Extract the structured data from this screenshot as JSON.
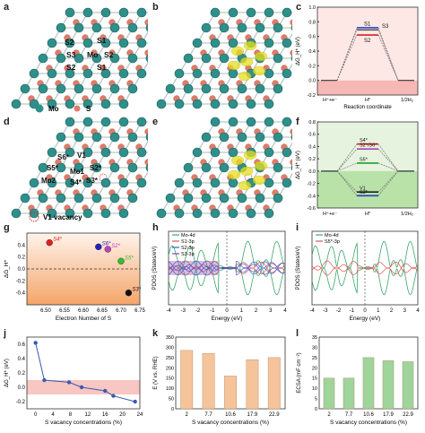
{
  "panel_labels": [
    "a",
    "b",
    "c",
    "d",
    "e",
    "f",
    "g",
    "h",
    "i",
    "j",
    "k",
    "l"
  ],
  "structure": {
    "a_sites": [
      "S1",
      "S2",
      "S3",
      "Mo",
      "S2",
      "S2",
      "S1"
    ],
    "a_legend": [
      "Mo",
      "S"
    ],
    "d_sites": [
      "V1",
      "S6*",
      "S5*",
      "Mo1",
      "S2*",
      "Mo2",
      "S4*",
      "S3*"
    ],
    "d_legend": "V1 vacancy",
    "colors": {
      "mo": "#2f8f8a",
      "s": "#e07b6a",
      "charge": "#e8e020"
    }
  },
  "chart_data": [
    {
      "panel": "c",
      "type": "line",
      "ylabel": "ΔG_H* (eV)",
      "xlabel": "Reaction coordinate",
      "ylim": [
        -0.2,
        1.0
      ],
      "yticks": [
        "-0.2",
        "0.0",
        "0.2",
        "0.4",
        "0.6",
        "0.8",
        "1.0"
      ],
      "categories": [
        "H⁺+e⁻",
        "H*",
        "1/2H₂"
      ],
      "series": [
        {
          "name": "S1",
          "value": 0.72,
          "color": "#1a3fc9"
        },
        {
          "name": "S3",
          "value": 0.69,
          "color": "#555555"
        },
        {
          "name": "S2",
          "value": 0.62,
          "color": "#d42020"
        }
      ]
    },
    {
      "panel": "f",
      "type": "line",
      "ylabel": "ΔG_H* (eV)",
      "ylim": [
        -0.6,
        0.8
      ],
      "yticks": [
        "-0.6",
        "-0.4",
        "-0.2",
        "0.0",
        "0.2",
        "0.4",
        "0.6",
        "0.8"
      ],
      "categories": [
        "H⁺+e⁻",
        "H*",
        "1/2H₂"
      ],
      "series": [
        {
          "name": "S4*",
          "value": 0.44,
          "color": "#e02020"
        },
        {
          "name": "S2*/S6*",
          "value": 0.36,
          "color": "#b040b0"
        },
        {
          "name": "S5*",
          "value": 0.13,
          "color": "#20a020"
        },
        {
          "name": "V1",
          "value": -0.34,
          "color": "#222222"
        },
        {
          "name": "S3*",
          "value": -0.4,
          "color": "#1a3fc9"
        }
      ]
    },
    {
      "panel": "g",
      "type": "scatter",
      "ylabel": "ΔG_H*",
      "xlabel": "Electron Number of S",
      "xlim": [
        6.45,
        6.75
      ],
      "ylim": [
        -0.6,
        0.6
      ],
      "xticks": [
        "6.50",
        "6.55",
        "6.60",
        "6.65",
        "6.70",
        "6.75"
      ],
      "yticks": [
        "-0.4",
        "-0.2",
        "0.0",
        "0.2",
        "0.4"
      ],
      "points": [
        {
          "label": "S4*",
          "x": 6.51,
          "y": 0.44,
          "color": "#e02020"
        },
        {
          "label": "S6*",
          "x": 6.64,
          "y": 0.37,
          "color": "#2020c0"
        },
        {
          "label": "S2*",
          "x": 6.665,
          "y": 0.33,
          "color": "#c040c0"
        },
        {
          "label": "S5*",
          "x": 6.7,
          "y": 0.13,
          "color": "#30c030"
        },
        {
          "label": "S3*",
          "x": 6.72,
          "y": -0.4,
          "color": "#111111"
        }
      ]
    },
    {
      "panel": "h",
      "type": "line",
      "ylabel": "PDOS (States/eV)",
      "xlabel": "Energy (eV)",
      "xlim": [
        -4,
        4
      ],
      "xticks": [
        "-4",
        "-3",
        "-2",
        "-1",
        "0",
        "1",
        "2",
        "3",
        "4"
      ],
      "series": [
        {
          "name": "Mo-4d",
          "color": "#3aa86a"
        },
        {
          "name": "S1-3p",
          "color": "#e05050"
        },
        {
          "name": "S2-3p",
          "color": "#3060d0"
        },
        {
          "name": "S3-3p",
          "color": "#7a4ab0"
        }
      ]
    },
    {
      "panel": "i",
      "type": "line",
      "ylabel": "PDOS (States/eV)",
      "xlabel": "Energy (eV)",
      "xlim": [
        -4,
        4
      ],
      "xticks": [
        "-4",
        "-3",
        "-2",
        "-1",
        "0",
        "1",
        "2",
        "3",
        "4"
      ],
      "series": [
        {
          "name": "Mo-4d",
          "color": "#3aa86a"
        },
        {
          "name": "S5*-3p",
          "color": "#e05050"
        }
      ]
    },
    {
      "panel": "j",
      "type": "line",
      "ylabel": "ΔG_H* (eV)",
      "xlabel": "S vacancy concentrations (%)",
      "xlim": [
        -2,
        24
      ],
      "ylim": [
        -0.3,
        0.7
      ],
      "xticks": [
        "0",
        "4",
        "8",
        "12",
        "16",
        "20",
        "24"
      ],
      "yticks": [
        "-0.2",
        "0.0",
        "0.2",
        "0.4",
        "0.6"
      ],
      "x": [
        0,
        2,
        7.7,
        10.6,
        16,
        17.9,
        22.9
      ],
      "values": [
        0.62,
        0.1,
        0.07,
        0.0,
        -0.05,
        -0.12,
        -0.2
      ]
    },
    {
      "panel": "k",
      "type": "bar",
      "ylabel": "E (V vs. RHE)",
      "xlabel": "S vacancy concentrations (%)",
      "ylim": [
        0,
        350
      ],
      "yticks": [
        "0",
        "50",
        "100",
        "150",
        "200",
        "250",
        "300",
        "350"
      ],
      "categories": [
        "2",
        "7.7",
        "10.6",
        "17.9",
        "22.9"
      ],
      "values": [
        285,
        270,
        160,
        240,
        250
      ],
      "color": "#f5c49a"
    },
    {
      "panel": "l",
      "type": "bar",
      "ylabel": "ECSA (mF cm⁻²)",
      "xlabel": "S vacancy concentrations (%)",
      "ylim": [
        0,
        35
      ],
      "yticks": [
        "0",
        "5",
        "10",
        "15",
        "20",
        "25",
        "30",
        "35"
      ],
      "categories": [
        "2",
        "7.7",
        "10.6",
        "17.9",
        "22.9"
      ],
      "values": [
        15,
        15,
        25,
        23.5,
        23
      ],
      "color": "#9fd49a"
    }
  ]
}
